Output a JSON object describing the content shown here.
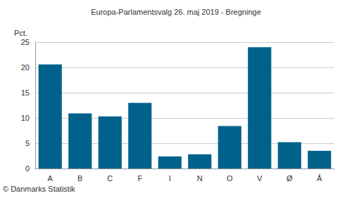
{
  "chart_data": {
    "type": "bar",
    "title": "Europa-Parlamentsvalg 26. maj 2019 - Bregninge",
    "y_label": "Pct.",
    "source": "© Danmarks Statistik",
    "categories": [
      "A",
      "B",
      "C",
      "F",
      "I",
      "N",
      "O",
      "V",
      "Ø",
      "Å"
    ],
    "values": [
      20.6,
      10.9,
      10.3,
      13.0,
      2.4,
      2.8,
      8.4,
      24.0,
      5.2,
      3.5
    ],
    "color": "#00628b",
    "ylim": [
      0,
      25
    ],
    "yticks": [
      0,
      5,
      10,
      15,
      20,
      25
    ],
    "grid": true
  }
}
